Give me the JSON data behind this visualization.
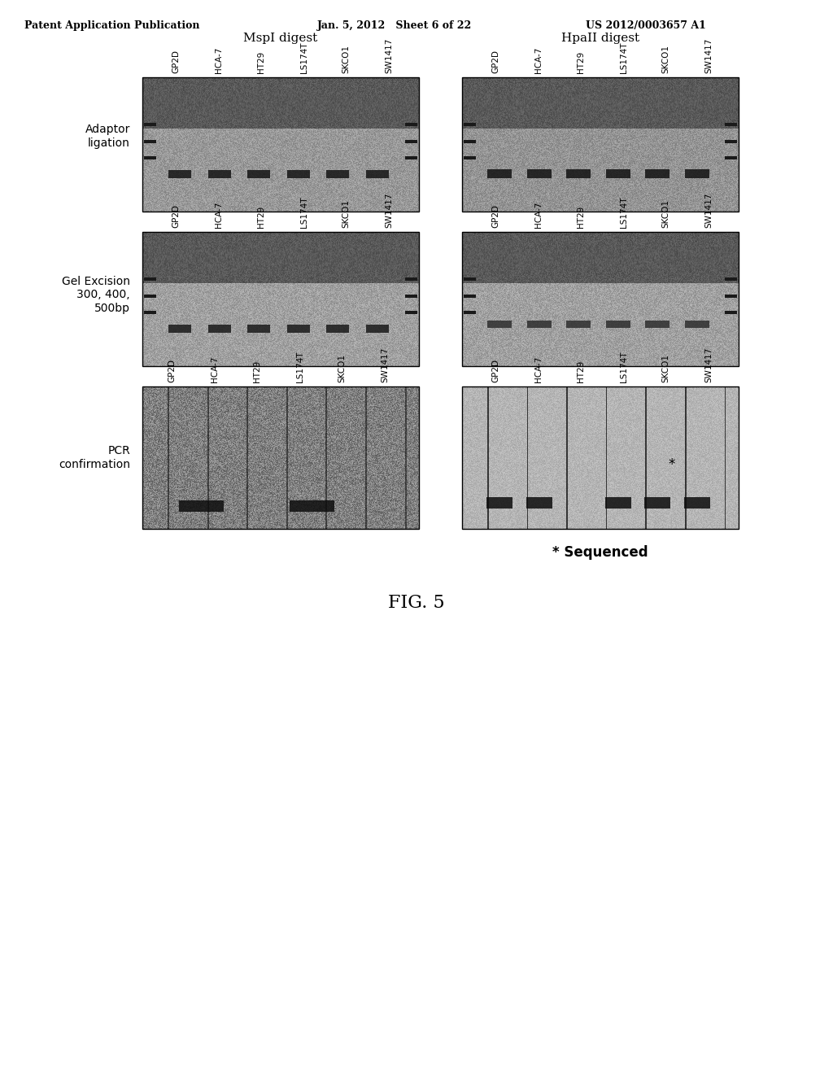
{
  "header_left": "Patent Application Publication",
  "header_center": "Jan. 5, 2012   Sheet 6 of 22",
  "header_right": "US 2012/0003657 A1",
  "figure_label": "FIG. 5",
  "col_labels": [
    "MspI digest",
    "HpaII digest"
  ],
  "row_labels": [
    "Adaptor\nligation",
    "Gel Excision\n300, 400,\n500bp",
    "PCR\nconfirmation"
  ],
  "lane_labels": [
    "GP2D",
    "HCA-7",
    "HT29",
    "LS174T",
    "SKCO1",
    "SW1417"
  ],
  "sequenced_label": "* Sequenced",
  "bg_color": "#ffffff",
  "gel_bg": "#c8c8c8",
  "panel_border": "#000000",
  "text_color": "#000000"
}
